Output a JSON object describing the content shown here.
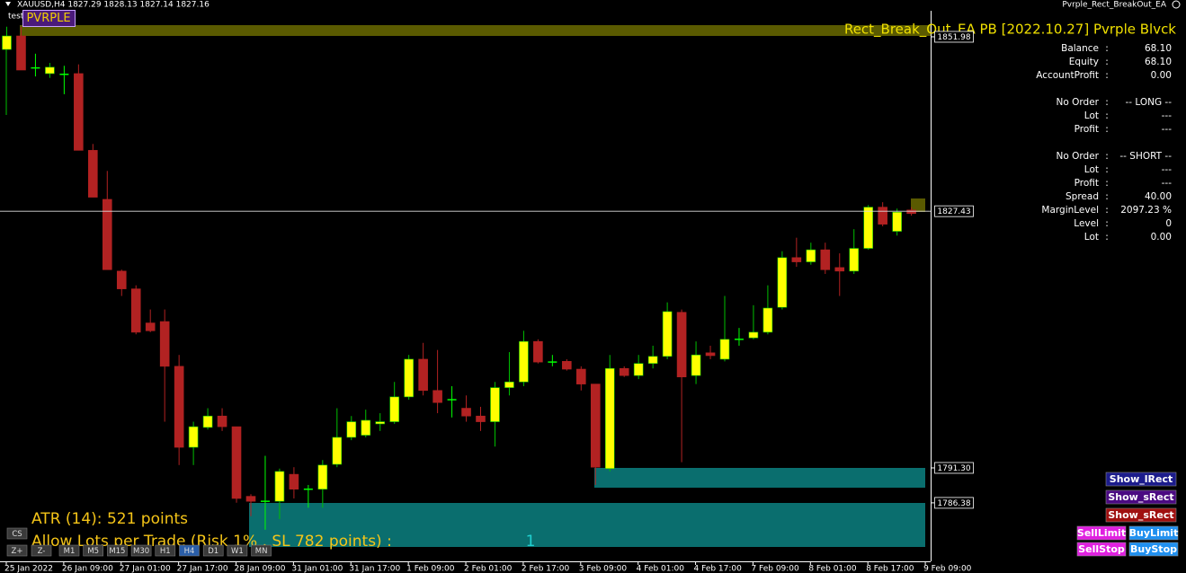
{
  "window": {
    "symbol_info": "XAUUSD,H4  1827.29 1828.13 1827.14 1827.16",
    "ea_name": "Pvrple_Rect_BreakOut_EA",
    "subwindow_label": "test",
    "brand": "PVRPLE"
  },
  "chart_data": {
    "type": "candlestick",
    "up_color": "#ffff00",
    "down_color": "#b22222",
    "up_wick_color": "#00c000",
    "doji_color": "#00ff00",
    "ylim": [
      1778.15,
      1855.39
    ],
    "price_labels": [
      1851.98,
      1827.43,
      {
        "value": 1791.3,
        "label": "1791.30"
      },
      1786.38
    ],
    "xticks": [
      {
        "value": 0,
        "label": "25 Jan 2022"
      },
      {
        "value": 4,
        "label": "26 Jan 09:00"
      },
      {
        "value": 8,
        "label": "27 Jan 01:00"
      },
      {
        "value": 12,
        "label": "27 Jan 17:00"
      },
      {
        "value": 16,
        "label": "28 Jan 09:00"
      },
      {
        "value": 20,
        "label": "31 Jan 01:00"
      },
      {
        "value": 24,
        "label": "31 Jan 17:00"
      },
      {
        "value": 28,
        "label": "1 Feb 09:00"
      },
      {
        "value": 32,
        "label": "2 Feb 01:00"
      },
      {
        "value": 36,
        "label": "2 Feb 17:00"
      },
      {
        "value": 40,
        "label": "3 Feb 09:00"
      },
      {
        "value": 44,
        "label": "4 Feb 01:00"
      },
      {
        "value": 48,
        "label": "4 Feb 17:00"
      },
      {
        "value": 52,
        "label": "7 Feb 09:00"
      },
      {
        "value": 56,
        "label": "8 Feb 01:00"
      },
      {
        "value": 60,
        "label": "8 Feb 17:00"
      },
      {
        "value": 64,
        "label": "9 Feb 09:00"
      }
    ],
    "candles": [
      [
        1850.2,
        1853.4,
        1850.2,
        1852.1
      ],
      [
        1852.1,
        1853.4,
        1847.3,
        1847.3
      ],
      [
        1847.6,
        1849.6,
        1846.4,
        1847.6
      ],
      [
        1846.8,
        1848.3,
        1846.2,
        1847.7
      ],
      [
        1846.7,
        1847.9,
        1843.9,
        1846.7
      ],
      [
        1846.8,
        1848.1,
        1836.0,
        1836.0
      ],
      [
        1836.0,
        1836.9,
        1829.4,
        1829.4
      ],
      [
        1829.1,
        1833.1,
        1819.2,
        1819.2
      ],
      [
        1819.0,
        1819.2,
        1815.5,
        1816.5
      ],
      [
        1816.5,
        1817.0,
        1810.1,
        1810.4
      ],
      [
        1811.7,
        1813.6,
        1810.4,
        1810.6
      ],
      [
        1811.9,
        1813.6,
        1797.8,
        1805.6
      ],
      [
        1805.6,
        1807.2,
        1791.7,
        1794.2
      ],
      [
        1794.2,
        1797.8,
        1791.7,
        1797.1
      ],
      [
        1797.0,
        1799.7,
        1796.7,
        1798.6
      ],
      [
        1798.6,
        1799.7,
        1796.5,
        1797.1
      ],
      [
        1797.1,
        1797.1,
        1786.4,
        1787.0
      ],
      [
        1787.3,
        1787.6,
        1784.5,
        1786.6
      ],
      [
        1786.6,
        1793.0,
        1782.6,
        1786.6
      ],
      [
        1786.6,
        1791.2,
        1784.1,
        1790.8
      ],
      [
        1790.4,
        1791.4,
        1787.0,
        1788.3
      ],
      [
        1788.3,
        1788.9,
        1785.7,
        1788.3
      ],
      [
        1788.3,
        1792.4,
        1785.7,
        1791.7
      ],
      [
        1791.8,
        1799.7,
        1791.4,
        1795.6
      ],
      [
        1795.6,
        1798.6,
        1795.2,
        1797.8
      ],
      [
        1795.9,
        1799.5,
        1795.6,
        1798.0
      ],
      [
        1797.5,
        1799.0,
        1796.5,
        1797.8
      ],
      [
        1797.8,
        1803.4,
        1797.5,
        1801.3
      ],
      [
        1801.3,
        1807.2,
        1800.9,
        1806.6
      ],
      [
        1806.6,
        1808.9,
        1801.5,
        1802.2
      ],
      [
        1802.2,
        1807.9,
        1799.0,
        1800.5
      ],
      [
        1800.9,
        1802.8,
        1798.4,
        1800.9
      ],
      [
        1799.7,
        1801.5,
        1797.8,
        1798.6
      ],
      [
        1798.6,
        1799.9,
        1796.5,
        1797.8
      ],
      [
        1797.8,
        1803.4,
        1794.3,
        1802.6
      ],
      [
        1802.6,
        1807.6,
        1801.5,
        1803.4
      ],
      [
        1803.4,
        1810.6,
        1802.8,
        1809.1
      ],
      [
        1809.1,
        1809.4,
        1806.0,
        1806.2
      ],
      [
        1806.2,
        1807.2,
        1805.6,
        1806.2
      ],
      [
        1806.3,
        1806.6,
        1805.0,
        1805.2
      ],
      [
        1805.2,
        1805.6,
        1802.2,
        1803.1
      ],
      [
        1803.1,
        1803.1,
        1788.9,
        1791.4
      ],
      [
        1791.2,
        1807.2,
        1790.8,
        1805.3
      ],
      [
        1805.3,
        1805.6,
        1804.1,
        1804.3
      ],
      [
        1804.3,
        1807.2,
        1803.8,
        1806.0
      ],
      [
        1806.0,
        1808.5,
        1805.3,
        1807.0
      ],
      [
        1807.0,
        1814.6,
        1806.6,
        1813.3
      ],
      [
        1813.2,
        1813.6,
        1792.1,
        1804.1
      ],
      [
        1804.3,
        1809.1,
        1803.1,
        1807.2
      ],
      [
        1807.5,
        1808.5,
        1806.6,
        1807.1
      ],
      [
        1806.6,
        1815.5,
        1806.3,
        1809.4
      ],
      [
        1809.4,
        1811.0,
        1808.5,
        1809.4
      ],
      [
        1809.6,
        1814.2,
        1809.4,
        1810.4
      ],
      [
        1810.4,
        1817.0,
        1810.1,
        1813.8
      ],
      [
        1813.9,
        1821.8,
        1813.6,
        1820.9
      ],
      [
        1820.9,
        1823.7,
        1819.6,
        1820.3
      ],
      [
        1820.3,
        1823.0,
        1819.9,
        1822.0
      ],
      [
        1822.0,
        1823.0,
        1818.6,
        1819.2
      ],
      [
        1819.5,
        1821.5,
        1815.5,
        1819.0
      ],
      [
        1819.0,
        1824.9,
        1818.6,
        1822.2
      ],
      [
        1822.2,
        1828.3,
        1822.0,
        1828.0
      ],
      [
        1828.0,
        1828.7,
        1825.3,
        1825.6
      ],
      [
        1824.6,
        1827.8,
        1824.0,
        1827.3
      ],
      [
        1827.6,
        1828.0,
        1826.8,
        1827.1
      ]
    ]
  },
  "panel": {
    "title": "Rect_Break_Out_EA PB [2022.10.27] Pvrple Blvck",
    "groups": [
      [
        [
          "Balance",
          ":",
          "68.10"
        ],
        [
          "Equity",
          ":",
          "68.10"
        ],
        [
          "AccountProfit",
          ":",
          "0.00"
        ]
      ],
      [
        [
          "No Order",
          ":",
          "-- LONG --"
        ],
        [
          "Lot",
          ":",
          "---"
        ],
        [
          "Profit",
          ":",
          "---"
        ]
      ],
      [
        [
          "No Order",
          ":",
          "-- SHORT --"
        ],
        [
          "Lot",
          ":",
          "---"
        ],
        [
          "Profit",
          ":",
          "---"
        ]
      ],
      [
        [
          "Spread",
          ":",
          "40.00"
        ],
        [
          "MarginLevel",
          ":",
          "2097.23 %"
        ],
        [
          "Level",
          ":",
          "0"
        ],
        [
          "Lot",
          ":",
          "0.00"
        ]
      ]
    ]
  },
  "overlay": {
    "atr": "ATR (14): 521 points",
    "lots": "Allow Lots per Trade (Risk 1% , SL 782 points) :",
    "lots_value": "1"
  },
  "buttons": {
    "show_lrect": "Show_lRect",
    "show_srect_1": "Show_sRect",
    "show_srect_2": "Show_sRect",
    "sell_limit": "SellLimit",
    "buy_limit": "BuyLimit",
    "sell_stop": "SellStop",
    "buy_stop": "BuyStop"
  },
  "toolbar": {
    "left": [
      "CS",
      "Z+",
      "Z-"
    ],
    "timeframes": [
      "M1",
      "M5",
      "M15",
      "M30",
      "H1",
      "H4",
      "D1",
      "W1",
      "MN"
    ]
  }
}
